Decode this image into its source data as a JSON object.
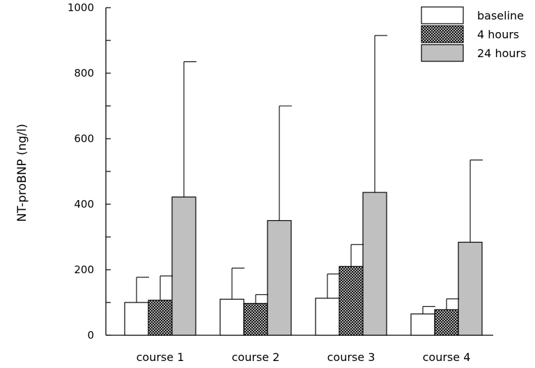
{
  "chart_data": {
    "type": "bar",
    "ylabel": "NT-proBNP (ng/l)",
    "xlabel": "",
    "ylim": [
      0,
      1000
    ],
    "yticks": [
      0,
      200,
      400,
      600,
      800,
      1000
    ],
    "y_tick_labels": [
      "0",
      "200",
      "400",
      "600",
      "800",
      "1000"
    ],
    "minor_tick_step": 100,
    "categories": [
      "course 1",
      "course 2",
      "course 3",
      "course 4"
    ],
    "series": [
      {
        "name": "baseline",
        "fill": "#ffffff",
        "pattern": "none",
        "values": [
          100,
          110,
          113,
          65
        ],
        "error_upper": [
          177,
          205,
          187,
          88
        ]
      },
      {
        "name": "4 hours",
        "fill": "#000000",
        "pattern": "crosshatch",
        "values": [
          107,
          97,
          210,
          78
        ],
        "error_upper": [
          181,
          124,
          277,
          111
        ]
      },
      {
        "name": "24 hours",
        "fill": "#c0c0c0",
        "pattern": "none",
        "values": [
          422,
          350,
          436,
          284
        ],
        "error_upper": [
          835,
          700,
          915,
          535
        ]
      }
    ],
    "legend_position": "top-right",
    "grid": false
  }
}
